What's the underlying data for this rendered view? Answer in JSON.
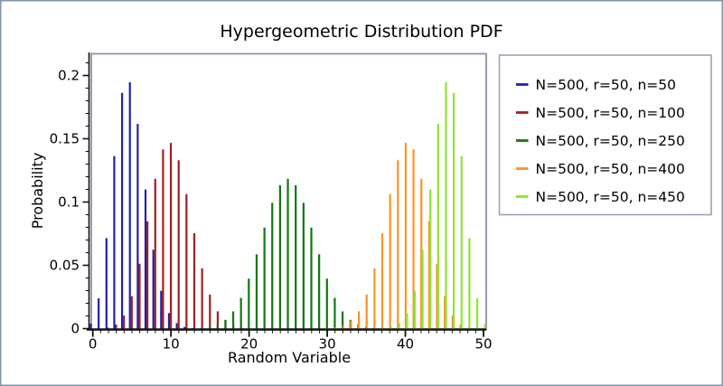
{
  "window": {
    "background": "#ffffff",
    "frame_color": "#8294ab"
  },
  "chart_data": {
    "type": "bar",
    "subtype": "stem-pdf",
    "title": "Hypergeometric Distribution PDF",
    "xlabel": "Random Variable",
    "ylabel": "Probability",
    "xlim": [
      0,
      50
    ],
    "ylim": [
      0,
      0.215
    ],
    "grid": false,
    "legend_position": "right-outside",
    "plot_border_color": "#8894a6",
    "axis_line_color": "#111111",
    "legend_border_color": "#98a3b3",
    "x_ticks": [
      0,
      10,
      20,
      30,
      40,
      50
    ],
    "x_tick_labels": [
      "0",
      "10",
      "20",
      "30",
      "40",
      "50"
    ],
    "x_minor_tick_step": 1,
    "y_ticks": [
      0,
      0.05,
      0.1,
      0.15,
      0.2
    ],
    "y_tick_labels": [
      "0",
      "0.05",
      "0.1",
      "0.15",
      "0.2"
    ],
    "y_minor_tick_step": 0.01,
    "series": [
      {
        "name": "N=500, r=50, n=50",
        "color": "#2121ab",
        "x_start": 0,
        "values": [
          0.00384,
          0.02394,
          0.07149,
          0.13624,
          0.18623,
          0.1946,
          0.16177,
          0.10993,
          0.06227,
          0.02984,
          0.01224,
          0.00433,
          0.00133,
          0.00036,
          8e-05
        ]
      },
      {
        "name": "N=500, r=50, n=100",
        "color": "#a02020",
        "x_start": 0,
        "values": [
          7.3e-06,
          0.000104,
          0.000719,
          0.003196,
          0.010288,
          0.025596,
          0.051228,
          0.084786,
          0.118387,
          0.141581,
          0.146733,
          0.133025,
          0.106292,
          0.075321,
          0.047578,
          0.026904,
          0.013668,
          0.006257,
          0.002587,
          0.000968,
          0.000329
        ]
      },
      {
        "name": "N=500, r=50, n=250",
        "color": "#117711",
        "x_start": 12,
        "values": [
          5.37e-05,
          0.000175,
          0.000513,
          0.001352,
          0.003218,
          0.00694,
          0.0136,
          0.024264,
          0.039491,
          0.058713,
          0.079834,
          0.099369,
          0.113287,
          0.118342,
          0.113287,
          0.099369,
          0.079834,
          0.058713,
          0.039491,
          0.024264,
          0.0136,
          0.00694,
          0.003218,
          0.001352,
          0.000513,
          0.000175,
          5.37e-05
        ]
      },
      {
        "name": "N=500, r=50, n=400",
        "color": "#ff9122",
        "x_start": 30,
        "values": [
          0.000329,
          0.000968,
          0.002587,
          0.006257,
          0.013668,
          0.026904,
          0.047578,
          0.075321,
          0.106292,
          0.133025,
          0.146733,
          0.141581,
          0.118387,
          0.084786,
          0.051228,
          0.025596,
          0.010288,
          0.003196,
          0.000719,
          0.000104,
          7.3e-06
        ]
      },
      {
        "name": "N=500, r=50, n=450",
        "color": "#8de431",
        "x_start": 36,
        "values": [
          8e-05,
          0.00036,
          0.00133,
          0.00433,
          0.01224,
          0.02984,
          0.06227,
          0.10993,
          0.16177,
          0.1946,
          0.18623,
          0.13624,
          0.07149,
          0.02394,
          0.00384
        ]
      }
    ]
  }
}
